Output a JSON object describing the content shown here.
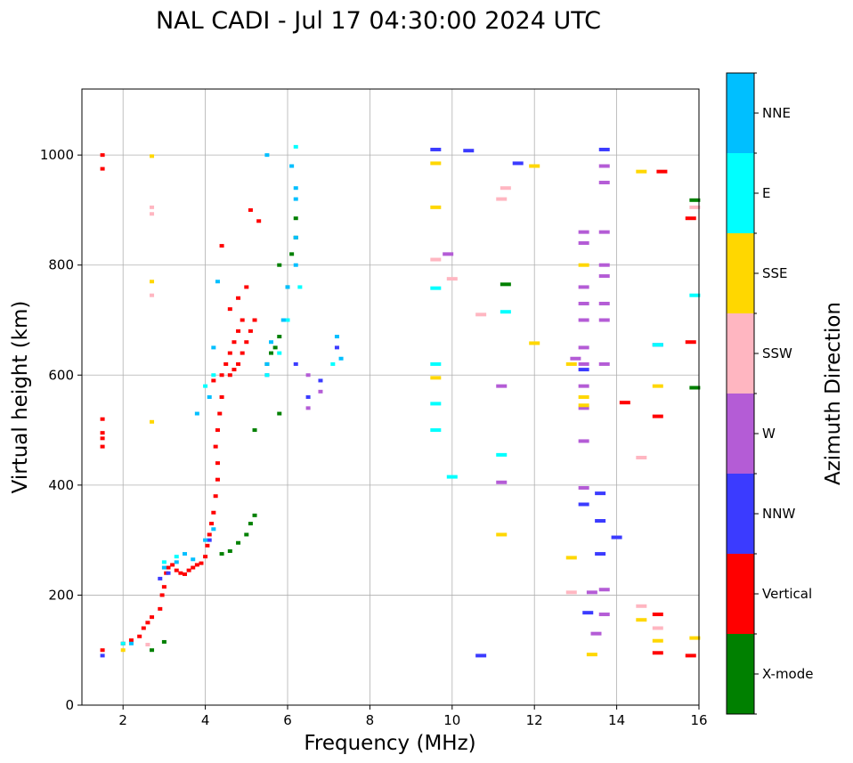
{
  "chart_data": {
    "type": "scatter",
    "title": "NAL CADI - Jul 17 04:30:00 2024 UTC",
    "xlabel": "Frequency (MHz)",
    "ylabel": "Virtual height (km)",
    "xlim": [
      1,
      16
    ],
    "ylim": [
      0,
      1120
    ],
    "xticks": [
      2,
      4,
      6,
      8,
      10,
      12,
      14,
      16
    ],
    "yticks": [
      0,
      200,
      400,
      600,
      800,
      1000
    ],
    "grid": true,
    "colorbar": {
      "label": "Azimuth Direction",
      "categories": [
        {
          "name": "X-mode",
          "color": "#008000"
        },
        {
          "name": "Vertical",
          "color": "#ff0000"
        },
        {
          "name": "NNW",
          "color": "#3b3bff"
        },
        {
          "name": "W",
          "color": "#b45cd6"
        },
        {
          "name": "SSW",
          "color": "#ffb6c1"
        },
        {
          "name": "SSE",
          "color": "#ffd700"
        },
        {
          "name": "E",
          "color": "#00ffff"
        },
        {
          "name": "NNE",
          "color": "#00bfff"
        }
      ]
    },
    "series": [
      {
        "name": "Vertical",
        "points": [
          [
            1.5,
            100
          ],
          [
            1.5,
            470
          ],
          [
            1.5,
            485
          ],
          [
            1.5,
            495
          ],
          [
            1.5,
            520
          ],
          [
            1.5,
            975
          ],
          [
            1.5,
            1000
          ],
          [
            2.0,
            112
          ],
          [
            2.2,
            118
          ],
          [
            2.4,
            125
          ],
          [
            2.5,
            140
          ],
          [
            2.6,
            150
          ],
          [
            2.7,
            160
          ],
          [
            2.9,
            175
          ],
          [
            2.95,
            200
          ],
          [
            3.0,
            215
          ],
          [
            3.05,
            240
          ],
          [
            3.1,
            250
          ],
          [
            3.2,
            255
          ],
          [
            3.3,
            245
          ],
          [
            3.4,
            240
          ],
          [
            3.5,
            238
          ],
          [
            3.6,
            245
          ],
          [
            3.7,
            250
          ],
          [
            3.8,
            255
          ],
          [
            3.9,
            258
          ],
          [
            4.0,
            270
          ],
          [
            4.05,
            290
          ],
          [
            4.1,
            310
          ],
          [
            4.15,
            330
          ],
          [
            4.2,
            350
          ],
          [
            4.25,
            380
          ],
          [
            4.3,
            410
          ],
          [
            4.3,
            440
          ],
          [
            4.25,
            470
          ],
          [
            4.3,
            500
          ],
          [
            4.35,
            530
          ],
          [
            4.4,
            560
          ],
          [
            4.2,
            590
          ],
          [
            4.4,
            600
          ],
          [
            4.5,
            620
          ],
          [
            4.6,
            640
          ],
          [
            4.7,
            660
          ],
          [
            4.8,
            680
          ],
          [
            4.9,
            700
          ],
          [
            4.6,
            600
          ],
          [
            4.7,
            610
          ],
          [
            4.8,
            620
          ],
          [
            4.9,
            640
          ],
          [
            5.0,
            660
          ],
          [
            5.1,
            680
          ],
          [
            5.2,
            700
          ],
          [
            4.6,
            720
          ],
          [
            4.8,
            740
          ],
          [
            5.0,
            760
          ],
          [
            4.4,
            835
          ],
          [
            5.1,
            900
          ],
          [
            5.3,
            880
          ],
          [
            14.2,
            550
          ],
          [
            15.0,
            525
          ],
          [
            15.0,
            165
          ],
          [
            15.0,
            95
          ],
          [
            15.1,
            970
          ],
          [
            15.8,
            885
          ],
          [
            15.8,
            660
          ],
          [
            15.8,
            90
          ]
        ]
      },
      {
        "name": "X-mode",
        "points": [
          [
            2.7,
            100
          ],
          [
            3.0,
            115
          ],
          [
            4.4,
            275
          ],
          [
            4.6,
            280
          ],
          [
            4.8,
            295
          ],
          [
            5.0,
            310
          ],
          [
            5.1,
            330
          ],
          [
            5.2,
            345
          ],
          [
            5.5,
            620
          ],
          [
            5.6,
            640
          ],
          [
            5.7,
            650
          ],
          [
            5.8,
            670
          ],
          [
            5.9,
            700
          ],
          [
            6.0,
            760
          ],
          [
            5.8,
            800
          ],
          [
            6.1,
            820
          ],
          [
            6.2,
            850
          ],
          [
            6.2,
            885
          ],
          [
            5.2,
            500
          ],
          [
            5.8,
            530
          ],
          [
            11.3,
            765
          ],
          [
            15.9,
            918
          ],
          [
            15.9,
            577
          ]
        ]
      },
      {
        "name": "NNW",
        "points": [
          [
            1.5,
            90
          ],
          [
            2.9,
            230
          ],
          [
            3.1,
            240
          ],
          [
            4.1,
            300
          ],
          [
            5.5,
            600
          ],
          [
            6.2,
            620
          ],
          [
            6.5,
            560
          ],
          [
            6.8,
            590
          ],
          [
            7.2,
            650
          ],
          [
            9.6,
            1010
          ],
          [
            10.4,
            1008
          ],
          [
            10.7,
            90
          ],
          [
            11.6,
            985
          ],
          [
            13.2,
            610
          ],
          [
            13.7,
            1010
          ],
          [
            13.6,
            385
          ],
          [
            13.6,
            335
          ],
          [
            13.6,
            275
          ],
          [
            13.2,
            365
          ],
          [
            14.0,
            305
          ],
          [
            13.3,
            168
          ],
          [
            15.0,
            655
          ]
        ]
      },
      {
        "name": "W",
        "points": [
          [
            13.0,
            630
          ],
          [
            13.2,
            860
          ],
          [
            13.2,
            840
          ],
          [
            13.2,
            760
          ],
          [
            13.2,
            730
          ],
          [
            13.2,
            700
          ],
          [
            13.2,
            650
          ],
          [
            13.2,
            620
          ],
          [
            13.2,
            580
          ],
          [
            13.2,
            540
          ],
          [
            13.2,
            480
          ],
          [
            13.2,
            395
          ],
          [
            13.4,
            205
          ],
          [
            13.5,
            130
          ],
          [
            13.7,
            980
          ],
          [
            13.7,
            950
          ],
          [
            13.7,
            860
          ],
          [
            13.7,
            800
          ],
          [
            13.7,
            780
          ],
          [
            13.7,
            730
          ],
          [
            13.7,
            700
          ],
          [
            13.7,
            620
          ],
          [
            13.7,
            210
          ],
          [
            13.7,
            165
          ],
          [
            6.5,
            600
          ],
          [
            6.8,
            570
          ],
          [
            6.5,
            540
          ],
          [
            11.2,
            580
          ],
          [
            11.2,
            405
          ],
          [
            9.9,
            820
          ]
        ]
      },
      {
        "name": "SSW",
        "points": [
          [
            2.7,
            905
          ],
          [
            2.7,
            893
          ],
          [
            2.7,
            745
          ],
          [
            9.6,
            810
          ],
          [
            10.0,
            775
          ],
          [
            10.7,
            710
          ],
          [
            11.2,
            920
          ],
          [
            11.3,
            940
          ],
          [
            12.9,
            205
          ],
          [
            14.6,
            450
          ],
          [
            14.6,
            180
          ],
          [
            15.0,
            140
          ],
          [
            15.9,
            905
          ],
          [
            2.6,
            110
          ]
        ]
      },
      {
        "name": "SSE",
        "points": [
          [
            2.7,
            998
          ],
          [
            2.7,
            770
          ],
          [
            2.7,
            515
          ],
          [
            9.6,
            985
          ],
          [
            9.6,
            905
          ],
          [
            9.6,
            595
          ],
          [
            12.0,
            980
          ],
          [
            12.0,
            658
          ],
          [
            11.2,
            310
          ],
          [
            12.9,
            620
          ],
          [
            12.9,
            268
          ],
          [
            13.2,
            800
          ],
          [
            13.2,
            560
          ],
          [
            13.2,
            545
          ],
          [
            13.4,
            92
          ],
          [
            14.6,
            970
          ],
          [
            14.6,
            155
          ],
          [
            15.0,
            580
          ],
          [
            15.0,
            117
          ],
          [
            15.9,
            122
          ],
          [
            2.0,
            100
          ]
        ]
      },
      {
        "name": "E",
        "points": [
          [
            2.0,
            112
          ],
          [
            3.0,
            260
          ],
          [
            3.3,
            270
          ],
          [
            4.0,
            580
          ],
          [
            4.2,
            600
          ],
          [
            5.5,
            600
          ],
          [
            5.8,
            640
          ],
          [
            6.0,
            700
          ],
          [
            6.3,
            760
          ],
          [
            6.2,
            1015
          ],
          [
            7.1,
            620
          ],
          [
            9.6,
            620
          ],
          [
            9.6,
            548
          ],
          [
            9.6,
            500
          ],
          [
            10.0,
            415
          ],
          [
            11.2,
            455
          ],
          [
            11.3,
            715
          ],
          [
            15.0,
            655
          ],
          [
            15.9,
            745
          ],
          [
            9.6,
            758
          ]
        ]
      },
      {
        "name": "NNE",
        "points": [
          [
            2.2,
            112
          ],
          [
            3.0,
            250
          ],
          [
            3.3,
            260
          ],
          [
            3.5,
            275
          ],
          [
            3.7,
            265
          ],
          [
            4.0,
            300
          ],
          [
            4.2,
            320
          ],
          [
            3.8,
            530
          ],
          [
            4.1,
            560
          ],
          [
            4.2,
            650
          ],
          [
            4.3,
            770
          ],
          [
            5.5,
            620
          ],
          [
            5.6,
            660
          ],
          [
            5.9,
            700
          ],
          [
            6.0,
            760
          ],
          [
            6.2,
            800
          ],
          [
            6.2,
            850
          ],
          [
            6.2,
            920
          ],
          [
            6.2,
            940
          ],
          [
            5.5,
            1000
          ],
          [
            7.3,
            630
          ],
          [
            7.2,
            670
          ],
          [
            6.1,
            980
          ]
        ]
      }
    ]
  }
}
